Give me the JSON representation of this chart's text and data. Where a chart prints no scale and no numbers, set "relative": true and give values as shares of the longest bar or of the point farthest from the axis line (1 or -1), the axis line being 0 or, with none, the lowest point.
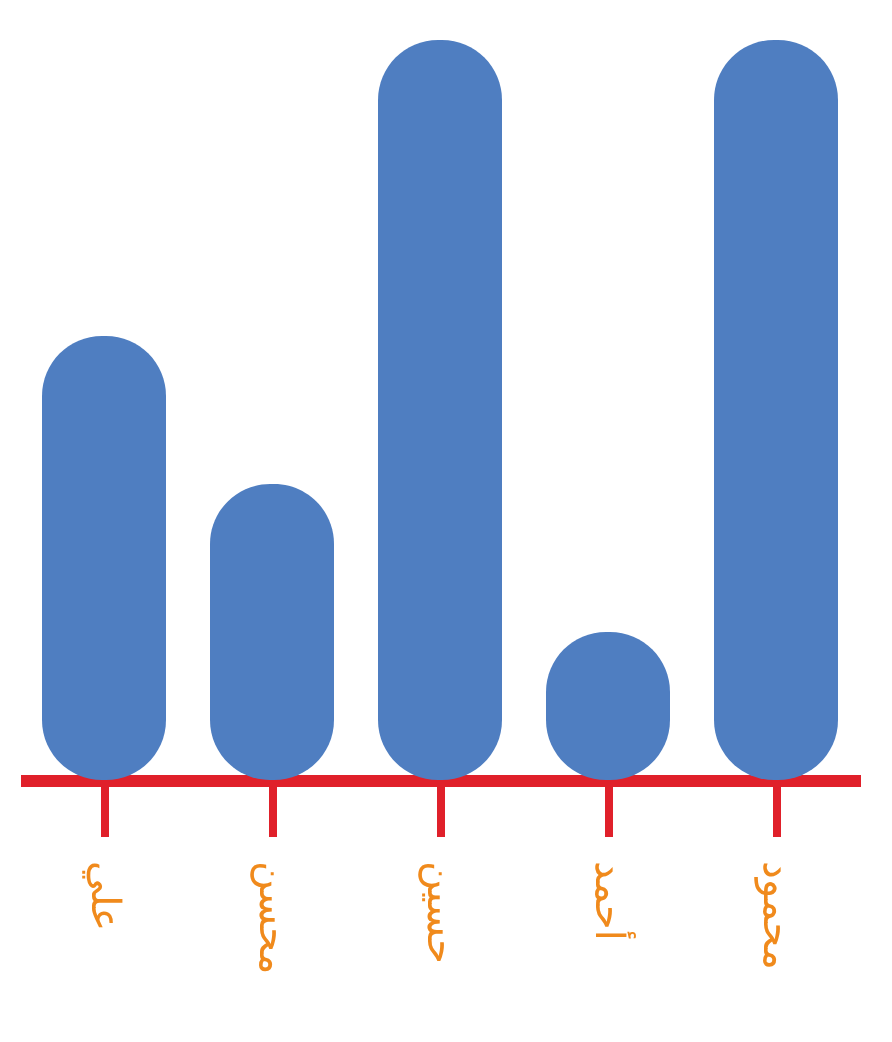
{
  "chart_data": {
    "type": "bar",
    "relative": true,
    "categories": [
      "علي",
      "محسن",
      "حسين",
      "أحمد",
      "محمود"
    ],
    "values": [
      0.6,
      0.4,
      1,
      0.2,
      1
    ],
    "color": "#4f7ec1",
    "grid": false
  }
}
